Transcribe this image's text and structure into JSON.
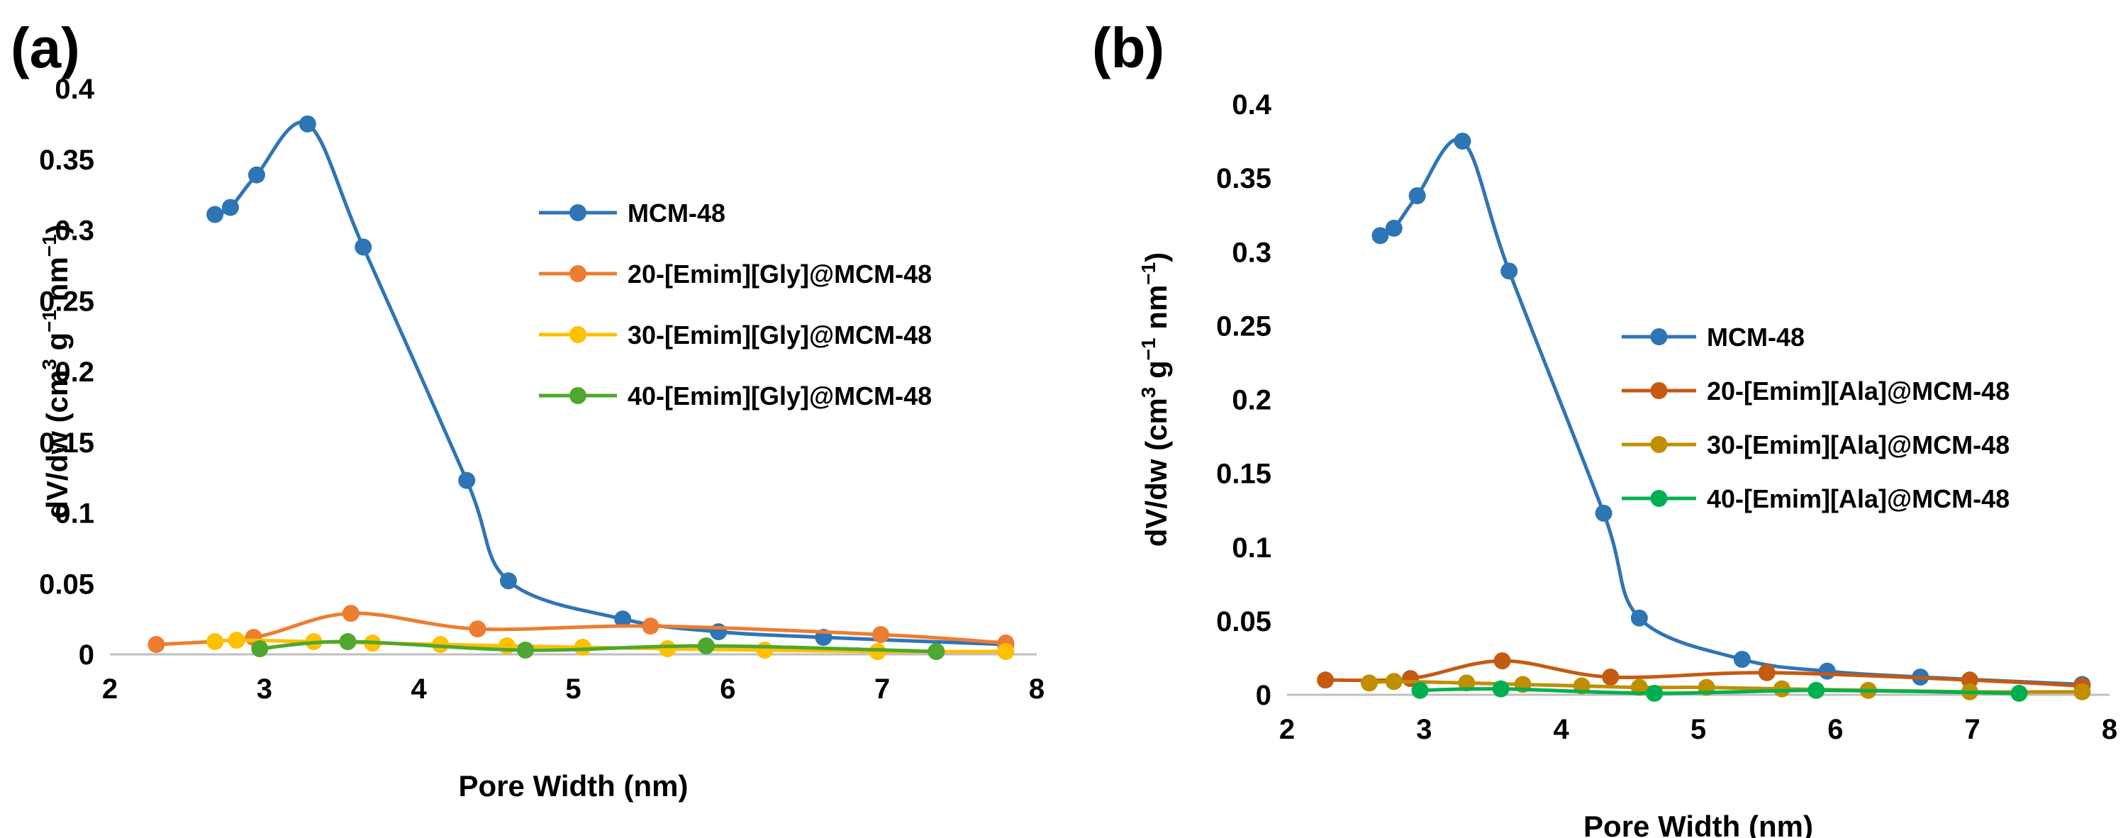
{
  "chart_data": [
    {
      "type": "line",
      "panel_label": "(a)",
      "title": "",
      "xlabel": "Pore Width (nm)",
      "ylabel_main": "dV/dw (cm",
      "ylabel_sup1": "3",
      "ylabel_mid": " g",
      "ylabel_sup2": "−1",
      "ylabel_mid2": " nm",
      "ylabel_sup3": "−1",
      "ylabel_end": ")",
      "xlim": [
        2,
        8
      ],
      "ylim": [
        0,
        0.4
      ],
      "xticks": [
        2,
        3,
        4,
        5,
        6,
        7,
        8
      ],
      "yticks": [
        0,
        0.05,
        0.1,
        0.15,
        0.2,
        0.25,
        0.3,
        0.35,
        0.4
      ],
      "ytick_labels": [
        "0",
        "0.05",
        "0.1",
        "0.15",
        "0.2",
        "0.25",
        "0.3",
        "0.35",
        "0.4"
      ],
      "xtick_labels": [
        "2",
        "3",
        "4",
        "5",
        "6",
        "7",
        "8"
      ],
      "legend_position": "upper-right",
      "series": [
        {
          "name": "MCM-48",
          "color": "#2e75b6",
          "x": [
            2.68,
            2.78,
            2.95,
            3.28,
            3.64,
            4.31,
            4.58,
            5.32,
            5.94,
            6.62,
            7.8
          ],
          "y": [
            0.311,
            0.316,
            0.339,
            0.375,
            0.288,
            0.123,
            0.052,
            0.025,
            0.016,
            0.012,
            0.007
          ]
        },
        {
          "name": "20-[Emim][Gly]@MCM-48",
          "color": "#ed7d31",
          "x": [
            2.3,
            2.93,
            3.56,
            4.38,
            5.5,
            6.99,
            7.8
          ],
          "y": [
            0.007,
            0.012,
            0.029,
            0.018,
            0.02,
            0.014,
            0.008
          ]
        },
        {
          "name": "30-[Emim][Gly]@MCM-48",
          "color": "#ffc000",
          "x": [
            2.68,
            2.82,
            3.32,
            3.7,
            4.14,
            4.57,
            5.06,
            5.61,
            6.24,
            6.97,
            7.8
          ],
          "y": [
            0.009,
            0.01,
            0.009,
            0.008,
            0.007,
            0.006,
            0.005,
            0.004,
            0.003,
            0.002,
            0.002
          ]
        },
        {
          "name": "40-[Emim][Gly]@MCM-48",
          "color": "#4ea72e",
          "x": [
            2.97,
            3.54,
            4.69,
            5.86,
            7.35
          ],
          "y": [
            0.004,
            0.009,
            0.003,
            0.006,
            0.002
          ]
        }
      ]
    },
    {
      "type": "line",
      "panel_label": "(b)",
      "title": "",
      "xlabel": "Pore Width (nm)",
      "ylabel_main": "dV/dw (cm",
      "ylabel_sup1": "3",
      "ylabel_mid": " g",
      "ylabel_sup2": "−1",
      "ylabel_mid2": " nm",
      "ylabel_sup3": "−1",
      "ylabel_end": ")",
      "xlim": [
        2,
        8
      ],
      "ylim": [
        0,
        0.4
      ],
      "xticks": [
        2,
        3,
        4,
        5,
        6,
        7,
        8
      ],
      "yticks": [
        0,
        0.05,
        0.1,
        0.15,
        0.2,
        0.25,
        0.3,
        0.35,
        0.4
      ],
      "ytick_labels": [
        "0",
        "0.05",
        "0.1",
        "0.15",
        "0.2",
        "0.25",
        "0.3",
        "0.35",
        "0.4"
      ],
      "xtick_labels": [
        "2",
        "3",
        "4",
        "5",
        "6",
        "7",
        "8"
      ],
      "legend_position": "right",
      "series": [
        {
          "name": "MCM-48",
          "color": "#2e75b6",
          "x": [
            2.68,
            2.78,
            2.95,
            3.28,
            3.62,
            4.31,
            4.57,
            5.32,
            5.94,
            6.62,
            7.8
          ],
          "y": [
            0.311,
            0.316,
            0.338,
            0.375,
            0.287,
            0.123,
            0.052,
            0.024,
            0.016,
            0.012,
            0.007
          ]
        },
        {
          "name": "20-[Emim][Ala]@MCM-48",
          "color": "#c55a11",
          "x": [
            2.28,
            2.9,
            3.57,
            4.36,
            5.5,
            6.98,
            7.8
          ],
          "y": [
            0.01,
            0.011,
            0.023,
            0.012,
            0.015,
            0.01,
            0.006
          ]
        },
        {
          "name": "30-[Emim][Ala]@MCM-48",
          "color": "#bf8f00",
          "x": [
            2.6,
            2.78,
            3.31,
            3.72,
            4.15,
            4.57,
            5.06,
            5.61,
            6.24,
            6.98,
            7.8
          ],
          "y": [
            0.008,
            0.009,
            0.008,
            0.007,
            0.006,
            0.005,
            0.005,
            0.004,
            0.003,
            0.002,
            0.002
          ]
        },
        {
          "name": "40-[Emim][Ala]@MCM-48",
          "color": "#00b050",
          "x": [
            2.97,
            3.56,
            4.68,
            5.86,
            7.34
          ],
          "y": [
            0.003,
            0.004,
            0.001,
            0.003,
            0.001
          ]
        }
      ]
    }
  ]
}
